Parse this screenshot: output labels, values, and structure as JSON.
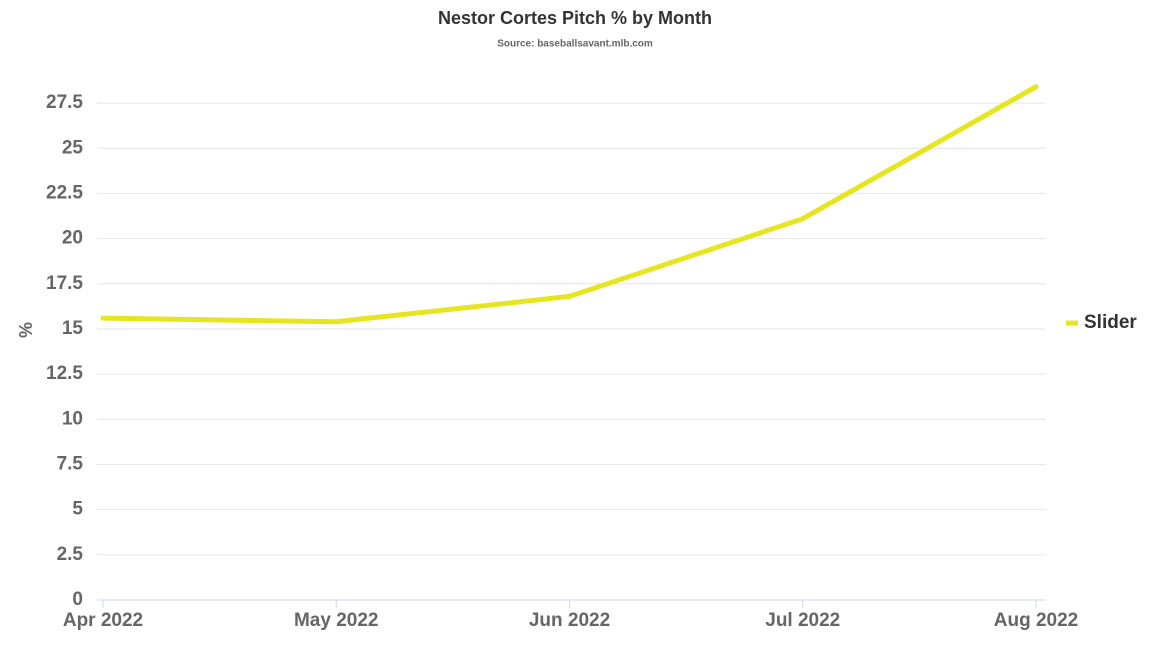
{
  "chart_data": {
    "type": "line",
    "title": "Nestor Cortes Pitch % by Month",
    "subtitle": "Source: baseballsavant.mlb.com",
    "y_label": "%",
    "categories": [
      "Apr 2022",
      "May 2022",
      "Jun 2022",
      "Jul 2022",
      "Aug 2022"
    ],
    "series": [
      {
        "name": "Slider",
        "color": "#e6e620",
        "values": [
          15.6,
          15.4,
          16.8,
          21.1,
          28.4
        ]
      }
    ],
    "ylim": [
      0,
      28.5
    ],
    "yticks": [
      0,
      2.5,
      5,
      7.5,
      10,
      12.5,
      15,
      17.5,
      20,
      22.5,
      25,
      27.5
    ],
    "grid": true,
    "legend": "right"
  }
}
